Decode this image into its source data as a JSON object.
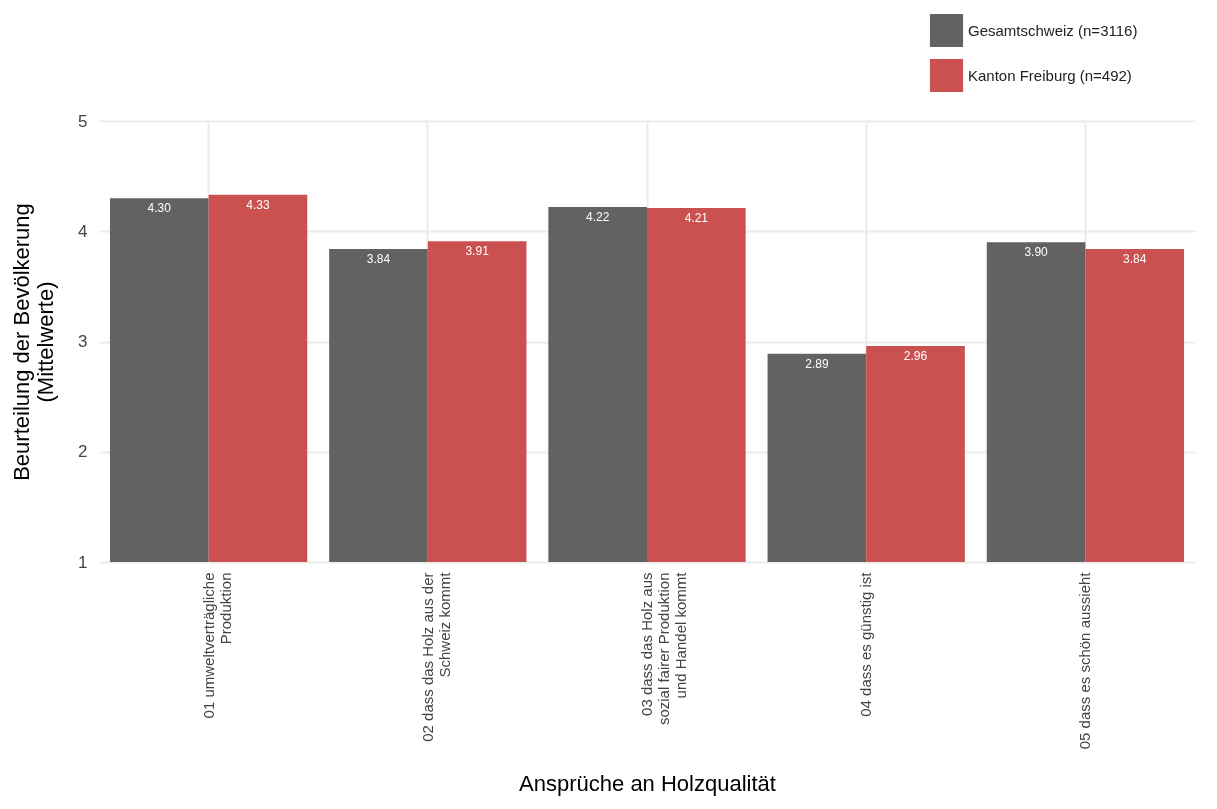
{
  "chart_data": {
    "type": "bar",
    "xlabel": "Ansprüche an Holzqualität",
    "ylabel": "Beurteilung der Bevölkerung\n(Mittelwerte)",
    "categories": [
      "01 umweltverträgliche\nProduktion",
      "02 dass das Holz aus der\nSchweiz kommt",
      "03 dass das Holz aus\nsozial fairer Produktion\nund Handel kommt",
      "04 dass es günstig ist",
      "05 dass es schön aussieht"
    ],
    "series": [
      {
        "name": "Gesamtschweiz (n=3116)",
        "color": "#626262",
        "values": [
          4.3,
          3.84,
          4.22,
          2.89,
          3.9
        ],
        "value_labels": [
          "4.30",
          "3.84",
          "4.22",
          "2.89",
          "3.90"
        ]
      },
      {
        "name": "Kanton Freiburg (n=492)",
        "color": "#cb5150",
        "values": [
          4.33,
          3.91,
          4.21,
          2.96,
          3.84
        ],
        "value_labels": [
          "4.33",
          "3.91",
          "4.21",
          "2.96",
          "3.84"
        ]
      }
    ],
    "ylim": [
      1,
      5
    ],
    "yticks": [
      1,
      2,
      3,
      4,
      5
    ],
    "grid": true,
    "legend": "top right"
  }
}
